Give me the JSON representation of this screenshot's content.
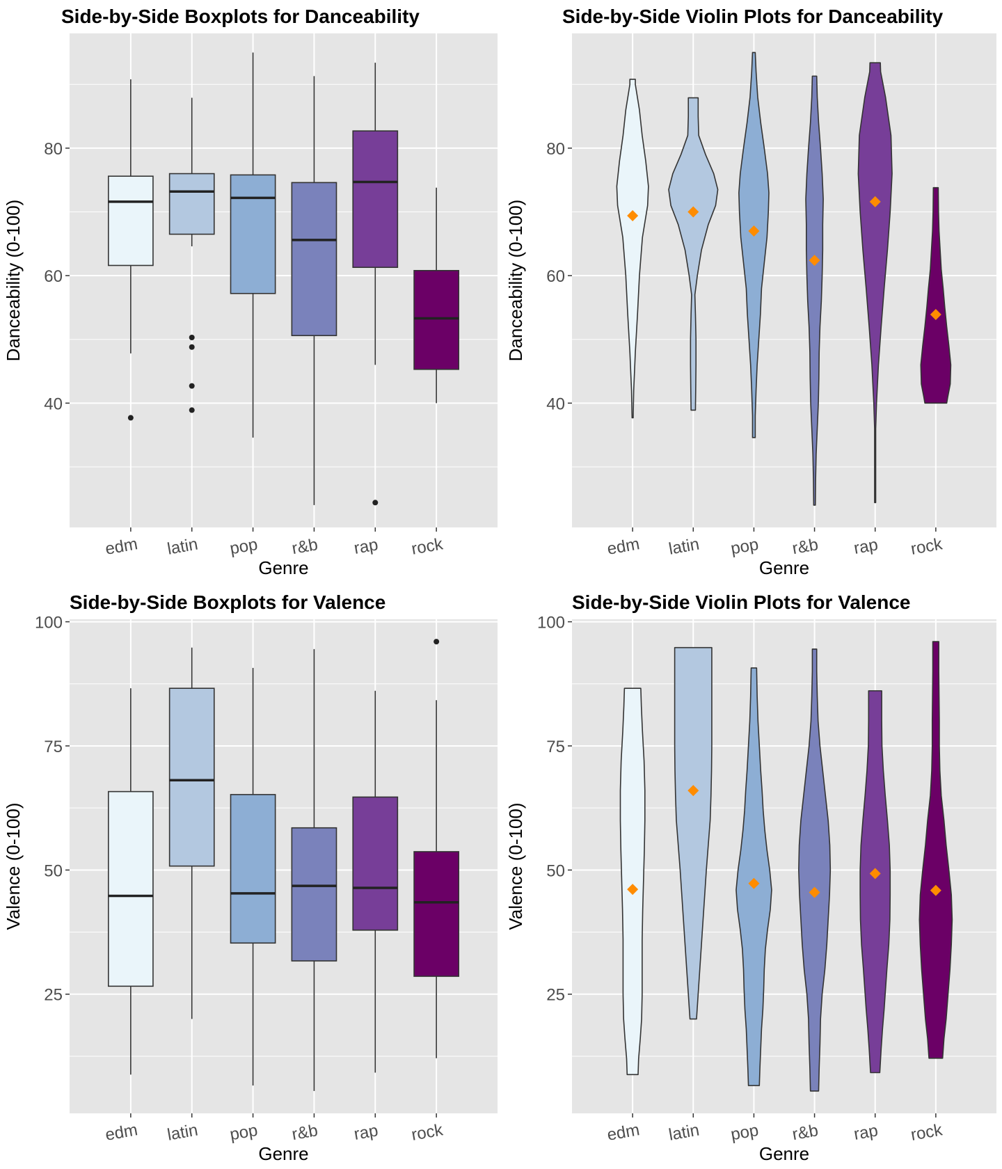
{
  "colors": {
    "edm": "#eaf5fa",
    "latin": "#b3c8e0",
    "pop": "#8daed4",
    "r&b": "#7a82bb",
    "rap": "#773e98",
    "rock": "#6b0066",
    "panel_bg": "#e5e5e5",
    "grid": "#ffffff",
    "mean_marker": "#ff8c00",
    "outline": "#333333"
  },
  "chart_data": [
    {
      "type": "boxplot",
      "title": "Side-by-Side Boxplots for Danceability",
      "xlabel": "Genre",
      "ylabel": "Danceability (0-100)",
      "categories": [
        "edm",
        "latin",
        "pop",
        "r&b",
        "rap",
        "rock"
      ],
      "ylim": [
        20.5,
        98
      ],
      "yticks": [
        40,
        60,
        80
      ],
      "grid": true,
      "boxes": [
        {
          "min": 47.8,
          "q1": 61.6,
          "median": 71.6,
          "q3": 75.6,
          "max": 90.8,
          "outliers": [
            37.7
          ]
        },
        {
          "min": 64.6,
          "q1": 66.5,
          "median": 73.2,
          "q3": 76.0,
          "max": 87.9,
          "outliers": [
            50.3,
            48.8,
            42.7,
            38.9
          ]
        },
        {
          "min": 34.6,
          "q1": 57.2,
          "median": 72.2,
          "q3": 75.8,
          "max": 95.0,
          "outliers": []
        },
        {
          "min": 24.0,
          "q1": 50.6,
          "median": 65.6,
          "q3": 74.6,
          "max": 91.3,
          "outliers": []
        },
        {
          "min": 46.0,
          "q1": 61.3,
          "median": 74.7,
          "q3": 82.7,
          "max": 93.4,
          "outliers": [
            24.4
          ]
        },
        {
          "min": 40.0,
          "q1": 45.3,
          "median": 53.3,
          "q3": 60.8,
          "max": 73.8,
          "outliers": []
        }
      ]
    },
    {
      "type": "violin",
      "title": "Side-by-Side Violin Plots for Danceability",
      "xlabel": "Genre",
      "ylabel": "Danceability (0-100)",
      "categories": [
        "edm",
        "latin",
        "pop",
        "r&b",
        "rap",
        "rock"
      ],
      "ylim": [
        20.5,
        98
      ],
      "yticks": [
        40,
        60,
        80
      ],
      "grid": true,
      "means": [
        69.4,
        70.0,
        67.0,
        62.4,
        71.6,
        53.9
      ],
      "violins": [
        {
          "min": 37.7,
          "max": 90.8,
          "profile": [
            [
              37.7,
              0.02
            ],
            [
              42,
              0.04
            ],
            [
              48,
              0.1
            ],
            [
              54,
              0.18
            ],
            [
              60,
              0.25
            ],
            [
              66,
              0.36
            ],
            [
              71,
              0.55
            ],
            [
              74,
              0.58
            ],
            [
              78,
              0.48
            ],
            [
              82,
              0.35
            ],
            [
              86,
              0.25
            ],
            [
              90,
              0.1
            ],
            [
              90.8,
              0.1
            ]
          ]
        },
        {
          "min": 38.9,
          "max": 87.9,
          "profile": [
            [
              38.9,
              0.08
            ],
            [
              42,
              0.09
            ],
            [
              46,
              0.1
            ],
            [
              50,
              0.1
            ],
            [
              54,
              0.08
            ],
            [
              57,
              0.06
            ],
            [
              60,
              0.15
            ],
            [
              64,
              0.3
            ],
            [
              68,
              0.55
            ],
            [
              71,
              0.82
            ],
            [
              73.5,
              0.9
            ],
            [
              76,
              0.75
            ],
            [
              79,
              0.45
            ],
            [
              82,
              0.2
            ],
            [
              85,
              0.18
            ],
            [
              87.9,
              0.18
            ]
          ]
        },
        {
          "min": 34.6,
          "max": 95.0,
          "profile": [
            [
              34.6,
              0.05
            ],
            [
              38,
              0.05
            ],
            [
              42,
              0.08
            ],
            [
              46,
              0.12
            ],
            [
              50,
              0.18
            ],
            [
              54,
              0.24
            ],
            [
              58,
              0.28
            ],
            [
              62,
              0.38
            ],
            [
              66,
              0.48
            ],
            [
              70,
              0.53
            ],
            [
              73,
              0.55
            ],
            [
              76,
              0.5
            ],
            [
              80,
              0.38
            ],
            [
              84,
              0.25
            ],
            [
              88,
              0.14
            ],
            [
              92,
              0.08
            ],
            [
              95,
              0.05
            ]
          ]
        },
        {
          "min": 24.0,
          "max": 91.3,
          "profile": [
            [
              24.0,
              0.03
            ],
            [
              28,
              0.04
            ],
            [
              32,
              0.06
            ],
            [
              36,
              0.1
            ],
            [
              40,
              0.14
            ],
            [
              44,
              0.16
            ],
            [
              48,
              0.17
            ],
            [
              52,
              0.2
            ],
            [
              56,
              0.25
            ],
            [
              60,
              0.28
            ],
            [
              64,
              0.3
            ],
            [
              68,
              0.3
            ],
            [
              72,
              0.32
            ],
            [
              76,
              0.28
            ],
            [
              80,
              0.22
            ],
            [
              84,
              0.15
            ],
            [
              88,
              0.1
            ],
            [
              91.3,
              0.08
            ]
          ]
        },
        {
          "min": 24.4,
          "max": 93.4,
          "profile": [
            [
              24.4,
              0.02
            ],
            [
              30,
              0.02
            ],
            [
              36,
              0.02
            ],
            [
              40,
              0.05
            ],
            [
              46,
              0.12
            ],
            [
              52,
              0.22
            ],
            [
              58,
              0.33
            ],
            [
              64,
              0.45
            ],
            [
              70,
              0.55
            ],
            [
              76,
              0.62
            ],
            [
              82,
              0.58
            ],
            [
              88,
              0.38
            ],
            [
              92,
              0.2
            ],
            [
              93.4,
              0.19
            ]
          ]
        },
        {
          "min": 40.0,
          "max": 73.8,
          "profile": [
            [
              40.0,
              0.4
            ],
            [
              41,
              0.44
            ],
            [
              43,
              0.53
            ],
            [
              46,
              0.55
            ],
            [
              49,
              0.48
            ],
            [
              52,
              0.4
            ],
            [
              55,
              0.33
            ],
            [
              58,
              0.27
            ],
            [
              61,
              0.2
            ],
            [
              64,
              0.16
            ],
            [
              67,
              0.12
            ],
            [
              70,
              0.1
            ],
            [
              73.8,
              0.09
            ]
          ]
        }
      ]
    },
    {
      "type": "boxplot",
      "title": "Side-by-Side Boxplots for Valence",
      "xlabel": "Genre",
      "ylabel": "Valence (0-100)",
      "categories": [
        "edm",
        "latin",
        "pop",
        "r&b",
        "rap",
        "rock"
      ],
      "ylim": [
        1,
        100.5
      ],
      "yticks": [
        25,
        50,
        75,
        100
      ],
      "grid": true,
      "boxes": [
        {
          "min": 8.8,
          "q1": 26.6,
          "median": 44.8,
          "q3": 65.8,
          "max": 86.6,
          "outliers": []
        },
        {
          "min": 20.0,
          "q1": 50.8,
          "median": 68.1,
          "q3": 86.6,
          "max": 94.8,
          "outliers": []
        },
        {
          "min": 6.6,
          "q1": 35.3,
          "median": 45.3,
          "q3": 65.2,
          "max": 90.7,
          "outliers": []
        },
        {
          "min": 5.5,
          "q1": 31.7,
          "median": 46.8,
          "q3": 58.5,
          "max": 94.5,
          "outliers": []
        },
        {
          "min": 9.2,
          "q1": 37.9,
          "median": 46.4,
          "q3": 64.7,
          "max": 86.1,
          "outliers": []
        },
        {
          "min": 12.1,
          "q1": 28.6,
          "median": 43.5,
          "q3": 53.7,
          "max": 84.2,
          "outliers": [
            96.0
          ]
        }
      ]
    },
    {
      "type": "violin",
      "title": "Side-by-Side Violin Plots for Valence",
      "xlabel": "Genre",
      "ylabel": "Valence (0-100)",
      "categories": [
        "edm",
        "latin",
        "pop",
        "r&b",
        "rap",
        "rock"
      ],
      "ylim": [
        1,
        100.5
      ],
      "yticks": [
        25,
        50,
        75,
        100
      ],
      "grid": true,
      "means": [
        46.1,
        66.0,
        47.3,
        45.5,
        49.3,
        45.9
      ],
      "violins": [
        {
          "min": 8.8,
          "max": 86.6,
          "profile": [
            [
              8.8,
              0.2
            ],
            [
              12,
              0.22
            ],
            [
              16,
              0.28
            ],
            [
              20,
              0.33
            ],
            [
              25,
              0.35
            ],
            [
              30,
              0.35
            ],
            [
              36,
              0.35
            ],
            [
              42,
              0.37
            ],
            [
              48,
              0.4
            ],
            [
              54,
              0.43
            ],
            [
              60,
              0.45
            ],
            [
              66,
              0.45
            ],
            [
              72,
              0.42
            ],
            [
              78,
              0.36
            ],
            [
              83,
              0.32
            ],
            [
              86.6,
              0.3
            ]
          ]
        },
        {
          "min": 20.0,
          "max": 94.8,
          "profile": [
            [
              20.0,
              0.12
            ],
            [
              25,
              0.18
            ],
            [
              30,
              0.24
            ],
            [
              35,
              0.3
            ],
            [
              40,
              0.36
            ],
            [
              45,
              0.42
            ],
            [
              50,
              0.48
            ],
            [
              55,
              0.55
            ],
            [
              60,
              0.62
            ],
            [
              65,
              0.65
            ],
            [
              70,
              0.67
            ],
            [
              75,
              0.68
            ],
            [
              80,
              0.68
            ],
            [
              85,
              0.68
            ],
            [
              90,
              0.68
            ],
            [
              94.8,
              0.68
            ]
          ]
        },
        {
          "min": 6.6,
          "max": 90.7,
          "profile": [
            [
              6.6,
              0.2
            ],
            [
              10,
              0.22
            ],
            [
              14,
              0.25
            ],
            [
              18,
              0.28
            ],
            [
              22,
              0.33
            ],
            [
              26,
              0.36
            ],
            [
              30,
              0.38
            ],
            [
              34,
              0.42
            ],
            [
              38,
              0.5
            ],
            [
              42,
              0.6
            ],
            [
              46,
              0.65
            ],
            [
              50,
              0.58
            ],
            [
              54,
              0.48
            ],
            [
              58,
              0.4
            ],
            [
              62,
              0.34
            ],
            [
              66,
              0.3
            ],
            [
              70,
              0.25
            ],
            [
              75,
              0.2
            ],
            [
              80,
              0.15
            ],
            [
              85,
              0.12
            ],
            [
              90.7,
              0.1
            ]
          ]
        },
        {
          "min": 5.5,
          "max": 94.5,
          "profile": [
            [
              5.5,
              0.15
            ],
            [
              10,
              0.17
            ],
            [
              15,
              0.2
            ],
            [
              20,
              0.22
            ],
            [
              25,
              0.28
            ],
            [
              30,
              0.38
            ],
            [
              35,
              0.45
            ],
            [
              40,
              0.5
            ],
            [
              45,
              0.55
            ],
            [
              50,
              0.58
            ],
            [
              55,
              0.56
            ],
            [
              60,
              0.5
            ],
            [
              65,
              0.4
            ],
            [
              70,
              0.3
            ],
            [
              75,
              0.2
            ],
            [
              80,
              0.13
            ],
            [
              85,
              0.1
            ],
            [
              90,
              0.08
            ],
            [
              94.5,
              0.08
            ]
          ]
        },
        {
          "min": 9.2,
          "max": 86.1,
          "profile": [
            [
              9.2,
              0.17
            ],
            [
              14,
              0.22
            ],
            [
              18,
              0.27
            ],
            [
              22,
              0.33
            ],
            [
              26,
              0.38
            ],
            [
              30,
              0.43
            ],
            [
              35,
              0.5
            ],
            [
              40,
              0.54
            ],
            [
              45,
              0.55
            ],
            [
              50,
              0.55
            ],
            [
              55,
              0.52
            ],
            [
              60,
              0.45
            ],
            [
              65,
              0.37
            ],
            [
              70,
              0.3
            ],
            [
              75,
              0.25
            ],
            [
              80,
              0.24
            ],
            [
              86.1,
              0.24
            ]
          ]
        },
        {
          "min": 12.1,
          "max": 96.0,
          "profile": [
            [
              12.1,
              0.25
            ],
            [
              16,
              0.3
            ],
            [
              20,
              0.38
            ],
            [
              25,
              0.45
            ],
            [
              30,
              0.52
            ],
            [
              35,
              0.57
            ],
            [
              40,
              0.6
            ],
            [
              45,
              0.57
            ],
            [
              50,
              0.48
            ],
            [
              55,
              0.38
            ],
            [
              60,
              0.3
            ],
            [
              65,
              0.2
            ],
            [
              70,
              0.15
            ],
            [
              75,
              0.13
            ],
            [
              80,
              0.13
            ],
            [
              85,
              0.12
            ],
            [
              90,
              0.11
            ],
            [
              96,
              0.11
            ]
          ]
        }
      ]
    }
  ]
}
